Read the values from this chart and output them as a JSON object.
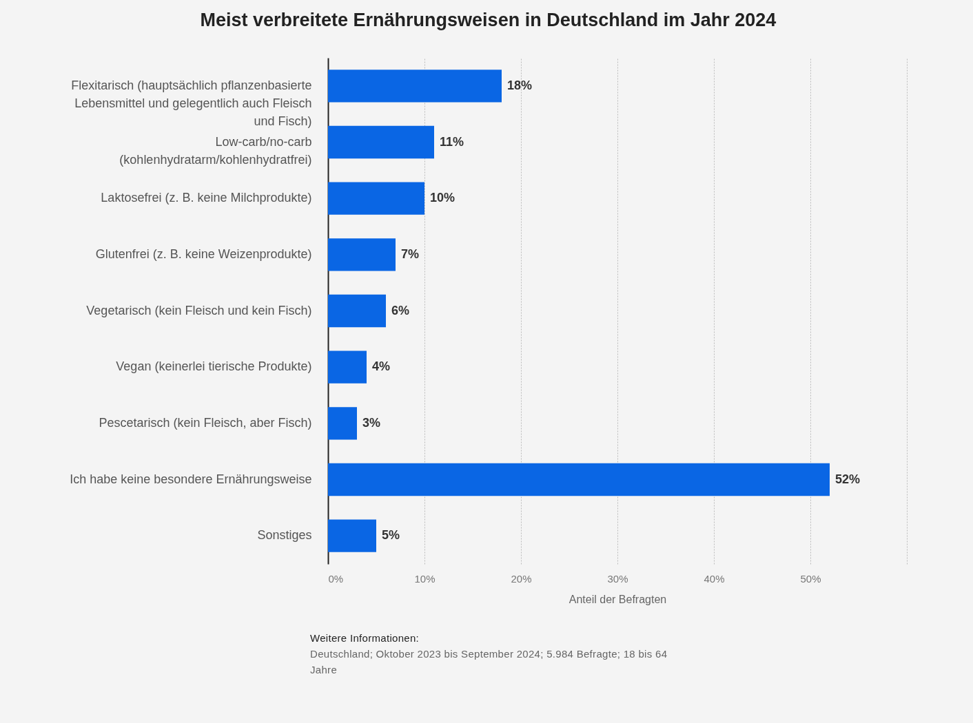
{
  "chart_data": {
    "type": "bar",
    "orientation": "horizontal",
    "title": "Meist verbreitete Ernährungsweisen in Deutschland im Jahr 2024",
    "xlabel": "Anteil der Befragten",
    "categories": [
      "Flexitarisch (hauptsächlich pflanzenbasierte Lebensmittel und gelegentlich auch Fleisch und Fisch)",
      "Low-carb/no-carb (kohlenhydratarm/kohlenhydratfrei)",
      "Laktosefrei (z. B. keine Milchprodukte)",
      "Glutenfrei (z. B. keine Weizenprodukte)",
      "Vegetarisch (kein Fleisch und kein Fisch)",
      "Vegan (keinerlei tierische Produkte)",
      "Pescetarisch (kein Fleisch, aber Fisch)",
      "Ich habe keine besondere Ernährungsweise",
      "Sonstiges"
    ],
    "values": [
      18,
      11,
      10,
      7,
      6,
      4,
      3,
      52,
      5
    ],
    "value_labels": [
      "18%",
      "11%",
      "10%",
      "7%",
      "6%",
      "4%",
      "3%",
      "52%",
      "5%"
    ],
    "color": "#0a66e4",
    "xlim": [
      0,
      60
    ],
    "xticks": [
      {
        "value": 0,
        "label": "0%"
      },
      {
        "value": 10,
        "label": "10%"
      },
      {
        "value": 20,
        "label": "20%"
      },
      {
        "value": 30,
        "label": "30%"
      },
      {
        "value": 40,
        "label": "40%"
      },
      {
        "value": 50,
        "label": "50%"
      },
      {
        "value": 60,
        "label": null
      }
    ],
    "grid": "x",
    "annotations": [
      "Weitere Informationen:",
      "Deutschland; Oktober 2023 bis September 2024; 5.984 Befragte; 18 bis 64 Jahre"
    ]
  }
}
